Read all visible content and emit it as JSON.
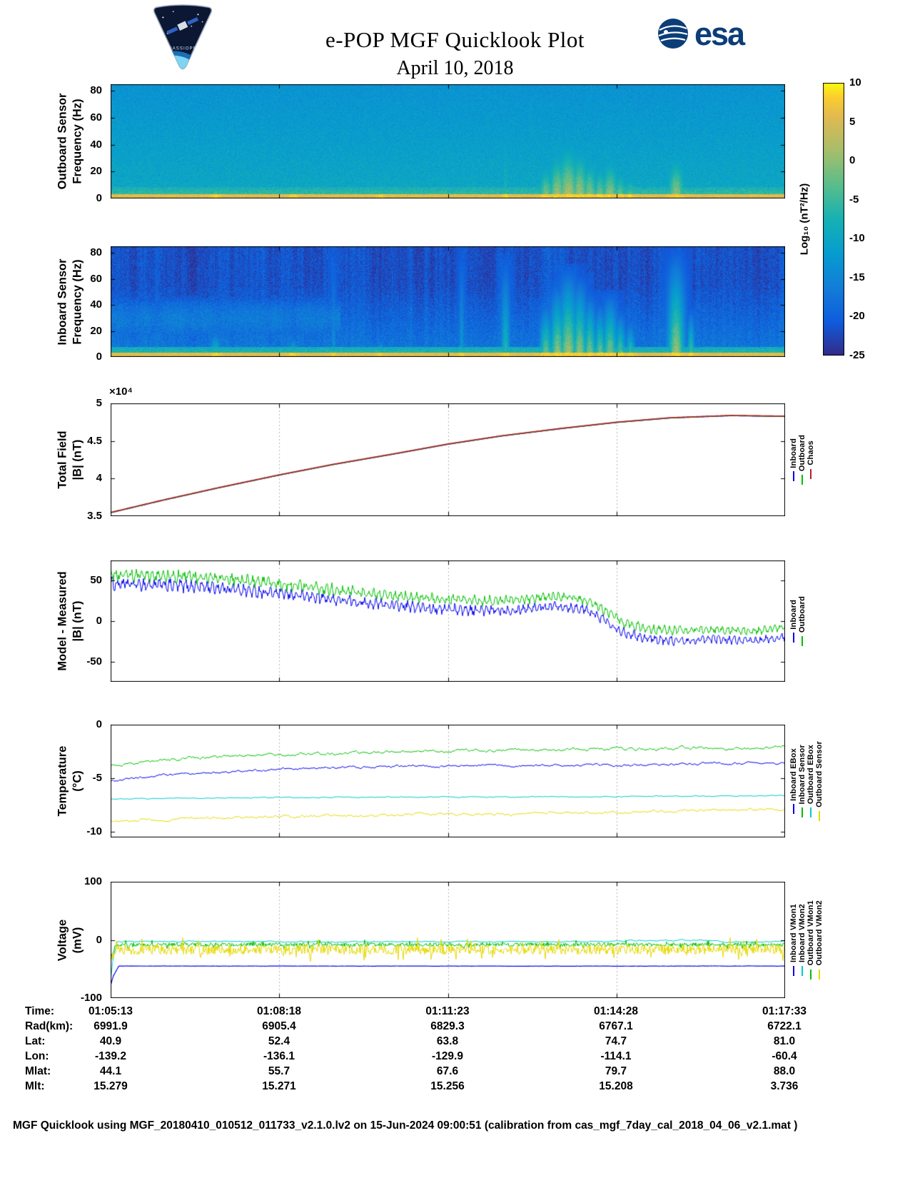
{
  "header": {
    "title": "e-POP MGF Quicklook Plot",
    "date": "April 10, 2018",
    "esa": "esa",
    "mission": "CASSIOPE"
  },
  "palette": {
    "esa_blue": "#0b3d78",
    "inboard_blue": "#0000ee",
    "outboard_green": "#00c000",
    "chaos_red": "#b22222",
    "cyan": "#00cccc",
    "yellow": "#e6d800"
  },
  "colorbar": {
    "label": "Log₁₀ (nT²/Hz)",
    "vmin": -25,
    "vmax": 10,
    "ticks": [
      10,
      5,
      0,
      -5,
      -10,
      -15,
      -20,
      -25
    ],
    "colormap": [
      [
        "#352a87",
        0
      ],
      [
        "#0f5cdd",
        0.125
      ],
      [
        "#127dd8",
        0.25
      ],
      [
        "#079ccf",
        0.375
      ],
      [
        "#15b1b4",
        0.5
      ],
      [
        "#59bd8c",
        0.625
      ],
      [
        "#a5be6b",
        0.75
      ],
      [
        "#e1b952",
        0.875
      ],
      [
        "#fcce2e",
        0.95
      ],
      [
        "#f9fb0e",
        1
      ]
    ]
  },
  "chart_data": [
    {
      "type": "heatmap",
      "ylabel": "Outboard Sensor\nFrequency (Hz)",
      "ylim": [
        0,
        85
      ],
      "yticks": [
        0,
        20,
        40,
        60,
        80
      ],
      "ytick_labels": [
        "0",
        "20",
        "40",
        "60",
        "80"
      ],
      "value_range": [
        -25,
        10
      ],
      "background": -13,
      "noise": 2.2,
      "grad_boost": 3.5,
      "grad_fmax": 80,
      "stripes": false,
      "speckle": 0,
      "seed": 7,
      "lowband": {
        "fmax": 9,
        "value": -4
      },
      "bottomband": {
        "fmax": 3.5,
        "value": 5.5
      },
      "bursts": [
        [
          0.155,
          0.006,
          14,
          -2
        ],
        [
          0.27,
          0.005,
          10,
          -4
        ],
        [
          0.4,
          0.004,
          9,
          -5
        ],
        [
          0.585,
          0.004,
          55,
          -7
        ],
        [
          0.645,
          0.007,
          26,
          1
        ],
        [
          0.662,
          0.008,
          36,
          3
        ],
        [
          0.678,
          0.01,
          42,
          4
        ],
        [
          0.695,
          0.008,
          38,
          3
        ],
        [
          0.71,
          0.007,
          30,
          2
        ],
        [
          0.725,
          0.006,
          26,
          1
        ],
        [
          0.74,
          0.008,
          31,
          2
        ],
        [
          0.755,
          0.006,
          22,
          0
        ],
        [
          0.77,
          0.005,
          18,
          -1
        ],
        [
          0.838,
          0.008,
          33,
          2
        ]
      ]
    },
    {
      "type": "heatmap",
      "ylabel": "Inboard Sensor\nFrequency (Hz)",
      "ylim": [
        0,
        85
      ],
      "yticks": [
        0,
        20,
        40,
        60,
        80
      ],
      "ytick_labels": [
        "0",
        "20",
        "40",
        "60",
        "80"
      ],
      "value_range": [
        -25,
        10
      ],
      "background": -21.5,
      "noise": 2.5,
      "grad_boost": 5,
      "grad_fmax": 55,
      "stripes": true,
      "speckle": 5,
      "seed": 11,
      "blotch": {
        "xmax": 0.34,
        "fmin": 10,
        "fmax": 48,
        "value": -12.5
      },
      "lowband": {
        "fmax": 8,
        "value": -5
      },
      "bottomband": {
        "fmax": 3.5,
        "value": 5.5
      },
      "bursts": [
        [
          0.155,
          0.006,
          22,
          -3
        ],
        [
          0.27,
          0.005,
          18,
          -5
        ],
        [
          0.33,
          0.003,
          85,
          -13
        ],
        [
          0.4,
          0.004,
          16,
          -6
        ],
        [
          0.52,
          0.003,
          85,
          -11
        ],
        [
          0.585,
          0.005,
          80,
          -6
        ],
        [
          0.645,
          0.007,
          45,
          0
        ],
        [
          0.662,
          0.008,
          60,
          2
        ],
        [
          0.678,
          0.01,
          72,
          3
        ],
        [
          0.695,
          0.008,
          65,
          2
        ],
        [
          0.71,
          0.007,
          52,
          1
        ],
        [
          0.725,
          0.006,
          45,
          0
        ],
        [
          0.74,
          0.008,
          52,
          1
        ],
        [
          0.755,
          0.006,
          38,
          -1
        ],
        [
          0.77,
          0.005,
          30,
          -2
        ],
        [
          0.838,
          0.009,
          85,
          2
        ],
        [
          0.86,
          0.004,
          40,
          -2
        ]
      ]
    },
    {
      "type": "line",
      "ylabel": "Total Field\n|B| (nT)",
      "exp_label": "×10⁴",
      "unit_scale": "1e4",
      "ylim": [
        3.5,
        5
      ],
      "yticks": [
        3.5,
        4,
        4.5,
        5
      ],
      "ytick_labels": [
        "3.5",
        "4",
        "4.5",
        "5"
      ],
      "series": [
        {
          "name": "Inboard",
          "color": "#0000ee",
          "width": 1.4,
          "noise": 0,
          "mode": "flat",
          "x": [
            0,
            0.08,
            0.16,
            0.25,
            0.33,
            0.42,
            0.5,
            0.58,
            0.67,
            0.75,
            0.83,
            0.92,
            1
          ],
          "y": [
            3.546,
            3.716,
            3.876,
            4.046,
            4.186,
            4.326,
            4.456,
            4.566,
            4.666,
            4.746,
            4.806,
            4.836,
            4.826
          ]
        },
        {
          "name": "Outboard",
          "color": "#00c000",
          "width": 1.4,
          "noise": 0,
          "mode": "flat",
          "x": [
            0,
            0.08,
            0.16,
            0.25,
            0.33,
            0.42,
            0.5,
            0.58,
            0.67,
            0.75,
            0.83,
            0.92,
            1
          ],
          "y": [
            3.548,
            3.718,
            3.878,
            4.048,
            4.188,
            4.328,
            4.458,
            4.568,
            4.668,
            4.748,
            4.808,
            4.838,
            4.828
          ]
        },
        {
          "name": "Chaos",
          "color": "#b22222",
          "width": 1.6,
          "noise": 0,
          "mode": "flat",
          "x": [
            0,
            0.08,
            0.16,
            0.25,
            0.33,
            0.42,
            0.5,
            0.58,
            0.67,
            0.75,
            0.83,
            0.92,
            1
          ],
          "y": [
            3.55,
            3.72,
            3.88,
            4.05,
            4.19,
            4.33,
            4.46,
            4.57,
            4.67,
            4.75,
            4.81,
            4.84,
            4.83
          ]
        }
      ]
    },
    {
      "type": "line",
      "ylabel": "Model - Measured\n|B| (nT)",
      "ylim": [
        -75,
        75
      ],
      "yticks": [
        -50,
        0,
        50
      ],
      "ytick_labels": [
        "-50",
        "0",
        "50"
      ],
      "series": [
        {
          "name": "Inboard",
          "color": "#0000ee",
          "width": 1,
          "noise": 8,
          "mode": "osc",
          "x": [
            0,
            0.05,
            0.1,
            0.15,
            0.2,
            0.25,
            0.3,
            0.35,
            0.4,
            0.45,
            0.5,
            0.55,
            0.6,
            0.63,
            0.66,
            0.7,
            0.73,
            0.76,
            0.8,
            0.85,
            0.9,
            0.95,
            1
          ],
          "y": [
            46,
            45,
            44,
            42,
            38,
            34,
            30,
            25,
            21,
            17,
            15,
            13,
            14,
            17,
            19,
            15,
            3,
            -14,
            -22,
            -25,
            -22,
            -25,
            -20
          ]
        },
        {
          "name": "Outboard",
          "color": "#00c000",
          "width": 1,
          "noise": 8,
          "mode": "osc",
          "x": [
            0,
            0.05,
            0.1,
            0.15,
            0.2,
            0.25,
            0.3,
            0.35,
            0.4,
            0.45,
            0.5,
            0.55,
            0.6,
            0.63,
            0.66,
            0.7,
            0.73,
            0.76,
            0.8,
            0.85,
            0.9,
            0.95,
            1
          ],
          "y": [
            57,
            56,
            55,
            53,
            50,
            46,
            42,
            37,
            33,
            29,
            27,
            25,
            26,
            29,
            31,
            27,
            15,
            -2,
            -10,
            -12,
            -10,
            -12,
            -8
          ]
        }
      ]
    },
    {
      "type": "line",
      "ylabel": "Temperature\n(°C)",
      "ylim": [
        -10.5,
        0
      ],
      "yticks": [
        0,
        -5,
        -10
      ],
      "ytick_labels": [
        "0",
        "-5",
        "-10"
      ],
      "series": [
        {
          "name": "Inboard EBox",
          "color": "#0000ee",
          "width": 1,
          "noise": 0.13,
          "mode": "walk",
          "x": [
            0,
            0.08,
            0.2,
            0.35,
            0.6,
            0.8,
            1
          ],
          "y": [
            -5.25,
            -4.7,
            -4.3,
            -3.95,
            -3.75,
            -3.7,
            -3.6
          ]
        },
        {
          "name": "Inboard Sensor",
          "color": "#00c000",
          "width": 1,
          "noise": 0.16,
          "mode": "walk",
          "x": [
            0,
            0.08,
            0.2,
            0.35,
            0.6,
            0.8,
            1
          ],
          "y": [
            -3.9,
            -3.3,
            -2.9,
            -2.6,
            -2.35,
            -2.25,
            -2.1
          ]
        },
        {
          "name": "Outboard EBox",
          "color": "#00cccc",
          "width": 1,
          "noise": 0.05,
          "mode": "walk",
          "x": [
            0,
            0.08,
            0.2,
            0.35,
            0.6,
            0.8,
            1
          ],
          "y": [
            -6.9,
            -6.85,
            -6.8,
            -6.75,
            -6.72,
            -6.68,
            -6.6
          ]
        },
        {
          "name": "Outboard Sensor",
          "color": "#e6d800",
          "width": 1,
          "noise": 0.14,
          "mode": "walk",
          "x": [
            0,
            0.08,
            0.2,
            0.35,
            0.6,
            0.8,
            1
          ],
          "y": [
            -9.05,
            -8.8,
            -8.6,
            -8.45,
            -8.3,
            -8.1,
            -7.85
          ]
        }
      ]
    },
    {
      "type": "line",
      "ylabel": "Voltage\n(mV)",
      "ylim": [
        -100,
        100
      ],
      "yticks": [
        -100,
        0,
        100
      ],
      "ytick_labels": [
        "-100",
        "0",
        "100"
      ],
      "series": [
        {
          "name": "Inboard VMon1",
          "color": "#0000ee",
          "width": 1.2,
          "noise": 0.25,
          "mode": "walk",
          "x": [
            0,
            0.004,
            0.012,
            1
          ],
          "y": [
            -78,
            -62,
            -45,
            -45
          ]
        },
        {
          "name": "Inboard VMon2",
          "color": "#00cccc",
          "width": 1,
          "noise": 1.2,
          "mode": "walk",
          "x": [
            0,
            0.004,
            0.01,
            0.76,
            0.765,
            0.9,
            0.905,
            1
          ],
          "y": [
            -70,
            -30,
            -3,
            -3,
            -1,
            -1,
            -3,
            -3
          ]
        },
        {
          "name": "Outboard VMon1",
          "color": "#00c000",
          "width": 1,
          "noise": 4.5,
          "mode": "spiky",
          "x": [
            0,
            0.008,
            1
          ],
          "y": [
            -30,
            -8,
            -8
          ]
        },
        {
          "name": "Outboard VMon2",
          "color": "#e6d800",
          "width": 1,
          "noise": 12,
          "mode": "spiky",
          "x": [
            0,
            0.008,
            1
          ],
          "y": [
            -35,
            -17,
            -16
          ]
        }
      ]
    }
  ],
  "table": {
    "rows": [
      {
        "label": "Time:",
        "values": [
          "01:05:13",
          "01:08:18",
          "01:11:23",
          "01:14:28",
          "01:17:33"
        ]
      },
      {
        "label": "Rad(km):",
        "values": [
          "6991.9",
          "6905.4",
          "6829.3",
          "6767.1",
          "6722.1"
        ]
      },
      {
        "label": "Lat:",
        "values": [
          "40.9",
          "52.4",
          "63.8",
          "74.7",
          "81.0"
        ]
      },
      {
        "label": "Lon:",
        "values": [
          "-139.2",
          "-136.1",
          "-129.9",
          "-114.1",
          "-60.4"
        ]
      },
      {
        "label": "Mlat:",
        "values": [
          "44.1",
          "55.7",
          "67.6",
          "79.7",
          "88.0"
        ]
      },
      {
        "label": "Mlt:",
        "values": [
          "15.279",
          "15.271",
          "15.256",
          "15.208",
          "3.736"
        ]
      }
    ]
  },
  "footer": "MGF Quicklook using MGF_20180410_010512_011733_v2.1.0.lv2 on 15-Jun-2024 09:00:51 (calibration from cas_mgf_7day_cal_2018_04_06_v2.1.mat )"
}
